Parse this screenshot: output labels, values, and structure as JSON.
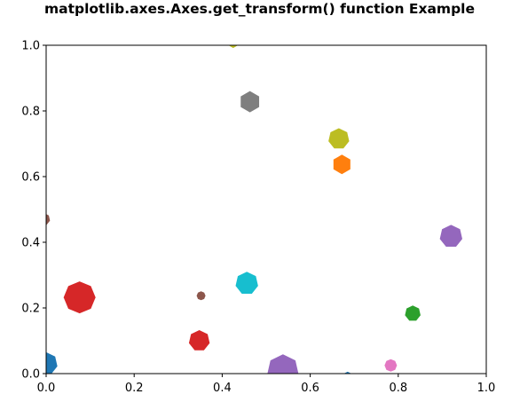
{
  "chart_data": {
    "type": "scatter",
    "title": "matplotlib.axes.Axes.get_transform() function Example",
    "xlabel": "",
    "ylabel": "",
    "xlim": [
      0,
      1
    ],
    "ylim": [
      0,
      1
    ],
    "grid": false,
    "x_ticks": [
      "0.0",
      "0.2",
      "0.4",
      "0.6",
      "0.8",
      "1.0"
    ],
    "y_ticks": [
      "0.0",
      "0.2",
      "0.4",
      "0.6",
      "0.8",
      "1.0"
    ],
    "points": [
      {
        "x": 0.0,
        "y": 0.03,
        "sides": 7,
        "size": 13,
        "color": "#1f77b4"
      },
      {
        "x": 0.685,
        "y": -0.005,
        "sides": 7,
        "size": 4,
        "color": "#1f77b4"
      },
      {
        "x": 0.672,
        "y": 0.637,
        "sides": 6,
        "size": 11,
        "color": "#ff7f0e"
      },
      {
        "x": 0.833,
        "y": 0.183,
        "sides": 7,
        "size": 9,
        "color": "#2ca02c"
      },
      {
        "x": 0.076,
        "y": 0.232,
        "sides": 8,
        "size": 18,
        "color": "#d62728"
      },
      {
        "x": 0.348,
        "y": 0.1,
        "sides": 7,
        "size": 12,
        "color": "#d62728"
      },
      {
        "x": 0.538,
        "y": 0.01,
        "sides": 7,
        "size": 18,
        "color": "#9467bd"
      },
      {
        "x": 0.92,
        "y": 0.418,
        "sides": 7,
        "size": 13,
        "color": "#9467bd"
      },
      {
        "x": 0.352,
        "y": 0.237,
        "sides": 8,
        "size": 5,
        "color": "#8c564b"
      },
      {
        "x": -0.005,
        "y": 0.47,
        "sides": 7,
        "size": 7,
        "color": "#8c564b"
      },
      {
        "x": 0.783,
        "y": 0.025,
        "sides": 8,
        "size": 7,
        "color": "#e377c2"
      },
      {
        "x": 0.463,
        "y": 0.828,
        "sides": 6,
        "size": 12,
        "color": "#7f7f7f"
      },
      {
        "x": 0.665,
        "y": 0.715,
        "sides": 7,
        "size": 12,
        "color": "#bcbd22"
      },
      {
        "x": 0.425,
        "y": 1.005,
        "sides": 6,
        "size": 5,
        "color": "#bcbd22"
      },
      {
        "x": 0.456,
        "y": 0.275,
        "sides": 7,
        "size": 13,
        "color": "#17becf"
      }
    ]
  }
}
